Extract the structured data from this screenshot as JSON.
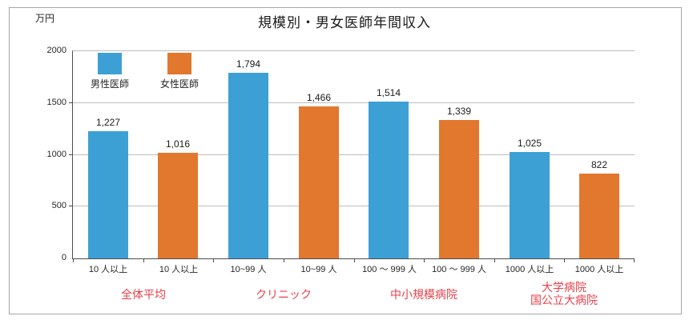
{
  "chart_data": {
    "type": "bar",
    "title": "規模別・男女医師年間収入",
    "ylabel": "万円",
    "ylim": [
      0,
      2000
    ],
    "yticks": [
      0,
      500,
      1000,
      1500,
      2000
    ],
    "grid": true,
    "legend_position": "top-left-inside",
    "axis_color": "#4d4d4d",
    "grid_color": "#bdbdbd",
    "series": [
      {
        "name": "男性医師",
        "color": "#3da0d5",
        "values": [
          1227,
          1794,
          1514,
          1025
        ]
      },
      {
        "name": "女性医師",
        "color": "#e2772e",
        "values": [
          1016,
          1466,
          1339,
          822
        ]
      }
    ],
    "columns": [
      {
        "series": 0,
        "category": "10 人以上",
        "value": 1227,
        "label": "1,227"
      },
      {
        "series": 1,
        "category": "10 人以上",
        "value": 1016,
        "label": "1,016"
      },
      {
        "series": 0,
        "category": "10~99 人",
        "value": 1794,
        "label": "1,794"
      },
      {
        "series": 1,
        "category": "10~99 人",
        "value": 1466,
        "label": "1,466"
      },
      {
        "series": 0,
        "category": "100 ～ 999 人",
        "value": 1514,
        "label": "1,514"
      },
      {
        "series": 1,
        "category": "100 ～ 999 人",
        "value": 1339,
        "label": "1,339"
      },
      {
        "series": 0,
        "category": "1000 人以上",
        "value": 1025,
        "label": "1,025"
      },
      {
        "series": 1,
        "category": "1000 人以上",
        "value": 822,
        "label": "822"
      }
    ],
    "groups": [
      {
        "label_lines": [
          "全体平均"
        ]
      },
      {
        "label_lines": [
          "クリニック"
        ]
      },
      {
        "label_lines": [
          "中小規模病院"
        ]
      },
      {
        "label_lines": [
          "大学病院",
          "国公立大病院"
        ]
      }
    ],
    "group_label_color": "#e8404a"
  }
}
